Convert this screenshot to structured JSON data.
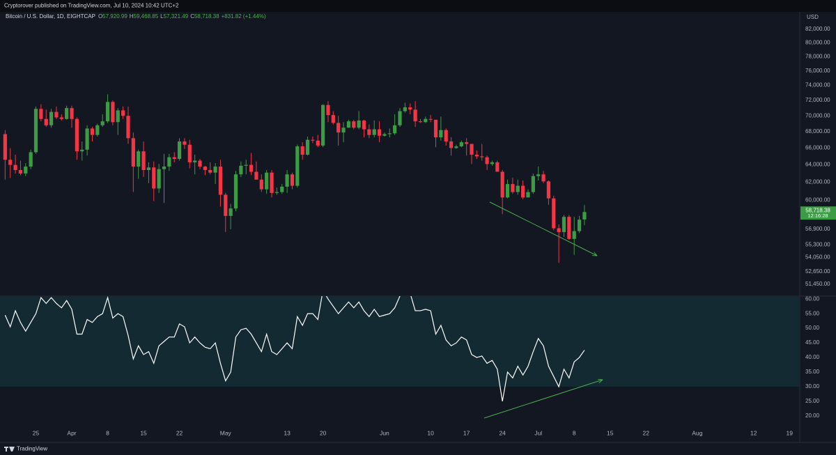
{
  "header": {
    "publisher": "Cryptorover published on TradingView.com, Jul 10, 2024 10:42 UTC+2"
  },
  "footer": {
    "brand": "TradingView"
  },
  "chart_data": [
    {
      "type": "candlestick",
      "title": "Bitcoin / U.S. Dollar, 1D, EIGHTCAP",
      "ohlc_legend": [
        {
          "label": "O",
          "value": "57,920.99"
        },
        {
          "label": "H",
          "value": "59,468.85"
        },
        {
          "label": "L",
          "value": "57,321.49"
        },
        {
          "label": "C",
          "value": "58,718.38"
        }
      ],
      "change": "+831.82 (+1.44%)",
      "currency": "USD",
      "last_price_label": "58,718.38",
      "countdown": "12:16:28",
      "up_color": "#3d9b45",
      "down_color": "#f23645",
      "log_scale": true,
      "grid": false,
      "x": [
        "2024-03-19",
        "2024-03-20",
        "2024-03-21",
        "2024-03-22",
        "2024-03-23",
        "2024-03-24",
        "2024-03-25",
        "2024-03-26",
        "2024-03-27",
        "2024-03-28",
        "2024-03-29",
        "2024-03-30",
        "2024-03-31",
        "2024-04-01",
        "2024-04-02",
        "2024-04-03",
        "2024-04-04",
        "2024-04-05",
        "2024-04-06",
        "2024-04-07",
        "2024-04-08",
        "2024-04-09",
        "2024-04-10",
        "2024-04-11",
        "2024-04-12",
        "2024-04-13",
        "2024-04-14",
        "2024-04-15",
        "2024-04-16",
        "2024-04-17",
        "2024-04-18",
        "2024-04-19",
        "2024-04-20",
        "2024-04-21",
        "2024-04-22",
        "2024-04-23",
        "2024-04-24",
        "2024-04-25",
        "2024-04-26",
        "2024-04-27",
        "2024-04-28",
        "2024-04-29",
        "2024-04-30",
        "2024-05-01",
        "2024-05-02",
        "2024-05-03",
        "2024-05-04",
        "2024-05-05",
        "2024-05-06",
        "2024-05-07",
        "2024-05-08",
        "2024-05-09",
        "2024-05-10",
        "2024-05-11",
        "2024-05-12",
        "2024-05-13",
        "2024-05-14",
        "2024-05-15",
        "2024-05-16",
        "2024-05-17",
        "2024-05-18",
        "2024-05-19",
        "2024-05-20",
        "2024-05-21",
        "2024-05-22",
        "2024-05-23",
        "2024-05-24",
        "2024-05-25",
        "2024-05-26",
        "2024-05-27",
        "2024-05-28",
        "2024-05-29",
        "2024-05-30",
        "2024-05-31",
        "2024-06-01",
        "2024-06-02",
        "2024-06-03",
        "2024-06-04",
        "2024-06-05",
        "2024-06-06",
        "2024-06-07",
        "2024-06-08",
        "2024-06-09",
        "2024-06-10",
        "2024-06-11",
        "2024-06-12",
        "2024-06-13",
        "2024-06-14",
        "2024-06-15",
        "2024-06-16",
        "2024-06-17",
        "2024-06-18",
        "2024-06-19",
        "2024-06-20",
        "2024-06-21",
        "2024-06-22",
        "2024-06-23",
        "2024-06-24",
        "2024-06-25",
        "2024-06-26",
        "2024-06-27",
        "2024-06-28",
        "2024-06-29",
        "2024-06-30",
        "2024-07-01",
        "2024-07-02",
        "2024-07-03",
        "2024-07-04",
        "2024-07-05",
        "2024-07-06",
        "2024-07-07",
        "2024-07-08",
        "2024-07-09",
        "2024-07-10"
      ],
      "open": [
        67700,
        64600,
        64000,
        63400,
        63000,
        63800,
        65500,
        70900,
        69600,
        68800,
        70500,
        69800,
        69600,
        71000,
        69600,
        65600,
        65800,
        68400,
        67600,
        68800,
        69300,
        71800,
        69200,
        70700,
        70000,
        67200,
        63800,
        65600,
        63400,
        63700,
        61300,
        63500,
        63800,
        64900,
        64700,
        66800,
        66400,
        64300,
        64500,
        63800,
        63400,
        63100,
        63800,
        60600,
        58300,
        59100,
        62900,
        63900,
        64000,
        63200,
        62300,
        61200,
        63100,
        60800,
        60900,
        61500,
        62900,
        61600,
        66200,
        65200,
        67000,
        66900,
        66300,
        71400,
        70100,
        69100,
        67900,
        68500,
        69300,
        68500,
        69400,
        68300,
        67600,
        68300,
        67500,
        67700,
        67800,
        68800,
        70600,
        71100,
        70800,
        69300,
        69200,
        69600,
        69500,
        67300,
        68200,
        66800,
        66000,
        66200,
        66700,
        66500,
        65200,
        65000,
        64900,
        64100,
        64300,
        63200,
        60300,
        61800,
        60900,
        61600,
        60300,
        60900,
        62700,
        62900,
        62100,
        60200,
        57000,
        56600,
        58200,
        55900,
        56700,
        57920.99
      ],
      "high": [
        68200,
        66000,
        65200,
        64500,
        64200,
        65800,
        71200,
        71500,
        70800,
        70900,
        71200,
        70200,
        71300,
        71300,
        69800,
        66800,
        68800,
        68600,
        69000,
        70200,
        72800,
        72000,
        71000,
        71200,
        71200,
        67900,
        65800,
        66800,
        64300,
        64400,
        64100,
        65300,
        65300,
        65500,
        67200,
        67200,
        67000,
        65200,
        64700,
        63900,
        64300,
        64200,
        64600,
        60800,
        59600,
        63300,
        64400,
        64600,
        65400,
        64400,
        62900,
        63400,
        63400,
        61400,
        61800,
        63400,
        63100,
        66400,
        66700,
        67400,
        67400,
        67600,
        71500,
        71900,
        70600,
        70000,
        69200,
        69500,
        69500,
        70600,
        69500,
        68900,
        69400,
        69300,
        67900,
        68400,
        70200,
        71000,
        71700,
        71600,
        71900,
        69600,
        69900,
        70100,
        69500,
        69900,
        68400,
        67300,
        66400,
        66900,
        67200,
        66500,
        65700,
        66500,
        65100,
        64500,
        64500,
        63400,
        62300,
        62500,
        62300,
        62200,
        61200,
        63000,
        63800,
        63300,
        62200,
        60500,
        57400,
        58400,
        58400,
        58200,
        58300,
        59468.85
      ],
      "low": [
        62300,
        62500,
        63000,
        62800,
        62700,
        63500,
        65300,
        69300,
        68600,
        68500,
        69600,
        69400,
        69500,
        68500,
        64600,
        64500,
        65100,
        66800,
        67400,
        68600,
        69100,
        68800,
        67600,
        69600,
        66500,
        60900,
        62400,
        62600,
        61900,
        59900,
        60800,
        59700,
        63300,
        64300,
        64500,
        65900,
        63600,
        62900,
        63500,
        62800,
        62900,
        61800,
        59300,
        56600,
        56900,
        58800,
        62600,
        62900,
        62800,
        62300,
        60900,
        60700,
        60300,
        60600,
        60700,
        60800,
        61200,
        61400,
        64600,
        65100,
        66600,
        66100,
        66100,
        69200,
        68900,
        66300,
        66700,
        68500,
        68300,
        68300,
        67300,
        67200,
        67300,
        66700,
        67400,
        67300,
        67600,
        68600,
        70400,
        70200,
        68600,
        69100,
        69100,
        69200,
        66100,
        66900,
        66300,
        65100,
        65900,
        66100,
        65100,
        64100,
        64700,
        64500,
        63400,
        63900,
        63200,
        58500,
        60200,
        60700,
        60600,
        60100,
        60300,
        60700,
        62200,
        61900,
        59500,
        56800,
        53500,
        56100,
        55800,
        54300,
        56500,
        57321.49
      ],
      "close": [
        64600,
        64000,
        63400,
        63000,
        63800,
        65500,
        70900,
        69600,
        68800,
        70500,
        69800,
        69600,
        71000,
        69600,
        65600,
        65800,
        68400,
        67600,
        68800,
        69300,
        71800,
        69200,
        70700,
        70000,
        67200,
        63800,
        65600,
        63400,
        63700,
        61300,
        63500,
        63800,
        64900,
        64700,
        66800,
        66400,
        64300,
        64500,
        63800,
        63400,
        63100,
        63800,
        60600,
        58300,
        59100,
        62900,
        63900,
        64000,
        63200,
        62300,
        61200,
        63100,
        60800,
        60900,
        61500,
        62900,
        61600,
        66200,
        65200,
        67000,
        66900,
        66300,
        71400,
        70100,
        69100,
        67900,
        68500,
        69300,
        68500,
        69400,
        68300,
        67600,
        68300,
        67500,
        67700,
        67800,
        68800,
        70600,
        71100,
        70800,
        69300,
        69200,
        69600,
        69500,
        67300,
        68200,
        66800,
        66000,
        66200,
        66700,
        66500,
        65200,
        65000,
        64900,
        64100,
        64300,
        63200,
        60300,
        61800,
        60900,
        61600,
        60300,
        60900,
        62700,
        62900,
        62100,
        60200,
        57000,
        56600,
        58200,
        55900,
        56700,
        57900,
        58718.38
      ],
      "xlim": [
        "2024-03-18",
        "2024-08-21"
      ],
      "xticks": [
        {
          "value": "2024-03-25",
          "label": "25"
        },
        {
          "value": "2024-04-01",
          "label": "Apr"
        },
        {
          "value": "2024-04-08",
          "label": "8"
        },
        {
          "value": "2024-04-15",
          "label": "15"
        },
        {
          "value": "2024-04-22",
          "label": "22"
        },
        {
          "value": "2024-05-01",
          "label": "May"
        },
        {
          "value": "2024-05-13",
          "label": "13"
        },
        {
          "value": "2024-05-20",
          "label": "20"
        },
        {
          "value": "2024-06-01",
          "label": "Jun"
        },
        {
          "value": "2024-06-10",
          "label": "10"
        },
        {
          "value": "2024-06-17",
          "label": "17"
        },
        {
          "value": "2024-06-24",
          "label": "24"
        },
        {
          "value": "2024-07-01",
          "label": "Jul"
        },
        {
          "value": "2024-07-08",
          "label": "8"
        },
        {
          "value": "2024-07-15",
          "label": "15"
        },
        {
          "value": "2024-07-22",
          "label": "22"
        },
        {
          "value": "2024-08-01",
          "label": "Aug"
        },
        {
          "value": "2024-08-12",
          "label": "12"
        },
        {
          "value": "2024-08-19",
          "label": "19"
        }
      ],
      "ylim": [
        50350,
        83260
      ],
      "yticks": [
        {
          "value": 82000,
          "label": "82,000.00"
        },
        {
          "value": 80000,
          "label": "80,000.00"
        },
        {
          "value": 78000,
          "label": "78,000.00"
        },
        {
          "value": 76000,
          "label": "76,000.00"
        },
        {
          "value": 74000,
          "label": "74,000.00"
        },
        {
          "value": 72000,
          "label": "72,000.00"
        },
        {
          "value": 70000,
          "label": "70,000.00"
        },
        {
          "value": 68000,
          "label": "68,000.00"
        },
        {
          "value": 66000,
          "label": "66,000.00"
        },
        {
          "value": 64000,
          "label": "64,000.00"
        },
        {
          "value": 62000,
          "label": "62,000.00"
        },
        {
          "value": 60000,
          "label": "60,000.00"
        },
        {
          "value": 56900,
          "label": "56,900.00"
        },
        {
          "value": 55300,
          "label": "55,300.00"
        },
        {
          "value": 54050,
          "label": "54,050.00"
        },
        {
          "value": 52650,
          "label": "52,650.00"
        },
        {
          "value": 51450,
          "label": "51,450.00"
        }
      ]
    },
    {
      "type": "line",
      "color": "#ffffff",
      "band": {
        "lower": 30,
        "upper": 70
      },
      "band_color": "#132a33",
      "grid": false,
      "values": [
        54.5,
        50.5,
        56,
        52,
        49,
        52,
        55,
        60.5,
        58.5,
        60.5,
        58.5,
        57,
        59.5,
        56.5,
        48,
        48,
        53,
        52,
        54,
        55,
        60.5,
        53.5,
        55,
        54,
        47.5,
        39.5,
        44,
        41,
        42,
        38,
        44,
        45.5,
        47,
        47,
        51.5,
        50.5,
        45,
        47,
        45,
        43.5,
        43,
        45,
        38,
        32,
        35,
        47,
        49.5,
        50,
        48,
        45,
        42,
        48,
        42,
        41,
        43,
        45,
        43,
        54,
        51,
        55,
        55,
        53,
        63,
        60,
        57.5,
        55,
        57,
        59,
        57,
        59,
        56,
        54,
        56.5,
        54,
        54.5,
        55,
        57,
        61,
        63,
        62,
        56,
        56,
        56.5,
        56,
        48,
        51,
        46,
        44,
        45,
        47,
        46,
        41,
        40,
        40.5,
        38,
        39,
        36,
        25,
        35,
        33,
        37,
        34,
        37,
        42,
        46.5,
        44,
        37,
        33.5,
        30,
        36,
        33,
        38.5,
        40,
        42.5
      ],
      "ylim": [
        16.4,
        61
      ],
      "yticks": [
        {
          "value": 60,
          "label": "60.00"
        },
        {
          "value": 55,
          "label": "55.00"
        },
        {
          "value": 50,
          "label": "50.00"
        },
        {
          "value": 45,
          "label": "45.00"
        },
        {
          "value": 40,
          "label": "40.00"
        },
        {
          "value": 35,
          "label": "35.00"
        },
        {
          "value": 30,
          "label": "30.00"
        },
        {
          "value": 25,
          "label": "25.00"
        },
        {
          "value": 20,
          "label": "20.00"
        }
      ]
    }
  ]
}
